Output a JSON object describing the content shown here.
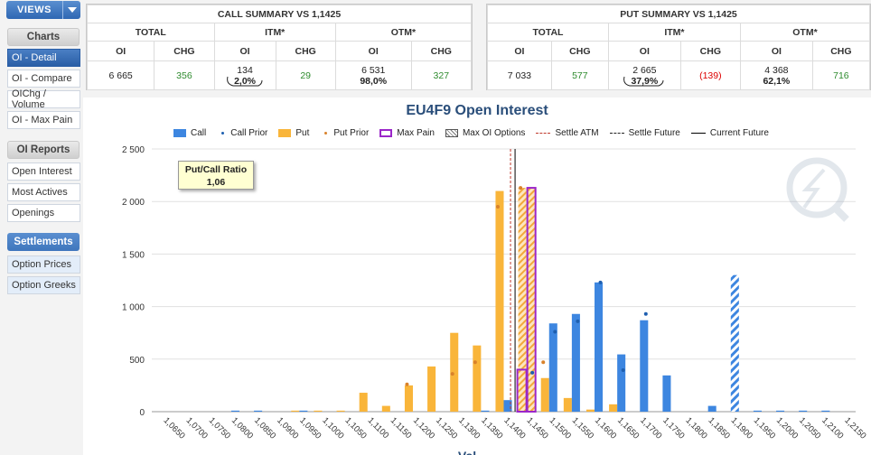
{
  "sidebar": {
    "views_label": "VIEWS",
    "charts_header": "Charts",
    "charts_items": [
      {
        "label": "OI - Detail",
        "active": true
      },
      {
        "label": "OI - Compare",
        "active": false
      },
      {
        "label": "OIChg / Volume",
        "active": false
      },
      {
        "label": "OI - Max Pain",
        "active": false
      }
    ],
    "reports_header": "OI Reports",
    "reports_items": [
      {
        "label": "Open Interest"
      },
      {
        "label": "Most Actives"
      },
      {
        "label": "Openings"
      }
    ],
    "settlements_header": "Settlements",
    "settlements_items": [
      {
        "label": "Option Prices"
      },
      {
        "label": "Option Greeks"
      }
    ]
  },
  "call_summary": {
    "title": "CALL SUMMARY VS 1,1425",
    "groups": [
      "TOTAL",
      "ITM*",
      "OTM*"
    ],
    "headers": [
      "OI",
      "CHG",
      "OI",
      "CHG",
      "OI",
      "CHG"
    ],
    "total_oi": "6 665",
    "total_chg": "356",
    "itm_oi": "134",
    "itm_pct": "2,0%",
    "itm_chg": "29",
    "otm_oi": "6 531",
    "otm_pct": "98,0%",
    "otm_chg": "327"
  },
  "put_summary": {
    "title": "PUT SUMMARY VS 1,1425",
    "groups": [
      "TOTAL",
      "ITM*",
      "OTM*"
    ],
    "headers": [
      "OI",
      "CHG",
      "OI",
      "CHG",
      "OI",
      "CHG"
    ],
    "total_oi": "7 033",
    "total_chg": "577",
    "itm_oi": "2 665",
    "itm_pct": "37,9%",
    "itm_chg": "(139)",
    "otm_oi": "4 368",
    "otm_pct": "62,1%",
    "otm_chg": "716"
  },
  "colors": {
    "call": "#3d86e0",
    "put": "#f9b53a",
    "max_pain": "#9b26c9",
    "settle_atm": "#c0392b",
    "current_future": "#000000"
  },
  "chart_data": {
    "type": "bar",
    "title": "EU4F9 Open Interest",
    "legend": [
      "Call",
      "Call Prior",
      "Put",
      "Put Prior",
      "Max Pain",
      "Max OI Options",
      "Settle ATM",
      "Settle Future",
      "Current Future"
    ],
    "xlabel": "Val",
    "pcr_label": "Put/Call Ratio",
    "pcr_value": "1,06",
    "ylim": [
      0,
      2500
    ],
    "yticks": [
      "0",
      "500",
      "1 000",
      "1 500",
      "2 000",
      "2 500"
    ],
    "categories": [
      "1,0650",
      "1,0700",
      "1,0750",
      "1,0800",
      "1,0850",
      "1,0900",
      "1,0950",
      "1,1000",
      "1,1050",
      "1,1100",
      "1,1150",
      "1,1200",
      "1,1250",
      "1,1300",
      "1,1350",
      "1,1400",
      "1,1450",
      "1,1500",
      "1,1550",
      "1,1600",
      "1,1650",
      "1,1700",
      "1,1750",
      "1,1800",
      "1,1850",
      "1,1900",
      "1,1950",
      "1,2000",
      "1,2050",
      "1,2100",
      "1,2150"
    ],
    "series": [
      {
        "name": "Call",
        "values": [
          0,
          0,
          0,
          10,
          10,
          0,
          10,
          0,
          0,
          0,
          0,
          0,
          0,
          0,
          10,
          110,
          400,
          840,
          930,
          1230,
          545,
          870,
          345,
          0,
          55,
          1300,
          10,
          10,
          10,
          10,
          0
        ]
      },
      {
        "name": "Call Prior",
        "values": [
          0,
          0,
          0,
          0,
          0,
          0,
          0,
          0,
          0,
          0,
          0,
          0,
          0,
          0,
          0,
          0,
          370,
          760,
          860,
          1230,
          395,
          930,
          0,
          0,
          0,
          0,
          0,
          0,
          0,
          0,
          0
        ]
      },
      {
        "name": "Put",
        "values": [
          0,
          0,
          0,
          0,
          0,
          0,
          10,
          10,
          10,
          180,
          55,
          250,
          430,
          750,
          630,
          2100,
          2130,
          320,
          130,
          20,
          70,
          0,
          0,
          0,
          0,
          0,
          0,
          0,
          0,
          0,
          0
        ]
      },
      {
        "name": "Put Prior",
        "values": [
          0,
          0,
          0,
          0,
          0,
          0,
          0,
          0,
          0,
          0,
          0,
          260,
          0,
          360,
          470,
          1950,
          2130,
          470,
          0,
          0,
          0,
          0,
          0,
          0,
          0,
          0,
          0,
          0,
          0,
          0,
          0
        ]
      }
    ],
    "max_pain": "1,1450",
    "max_oi_call": "1,1900",
    "max_oi_put": "1,1450",
    "settle_atm": 1.1415,
    "current_future": 1.1425
  }
}
